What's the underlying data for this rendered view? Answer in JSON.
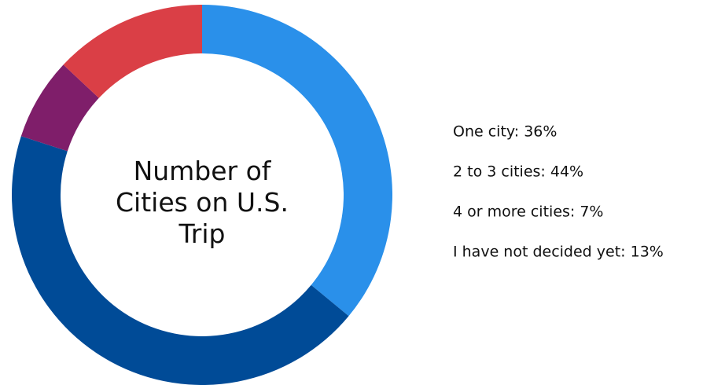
{
  "chart_data": {
    "type": "donut",
    "title": "Number of Cities on U.S. Trip",
    "values": [
      36,
      44,
      7,
      13
    ],
    "value_labels": [
      "One city: 36%",
      "2 to 3 cities: 44%",
      "4 or more cities: 7%",
      "I have not decided yet: 13%"
    ],
    "colors": [
      "#2a90ea",
      "#004b97",
      "#7f1e6a",
      "#da3f46"
    ]
  }
}
